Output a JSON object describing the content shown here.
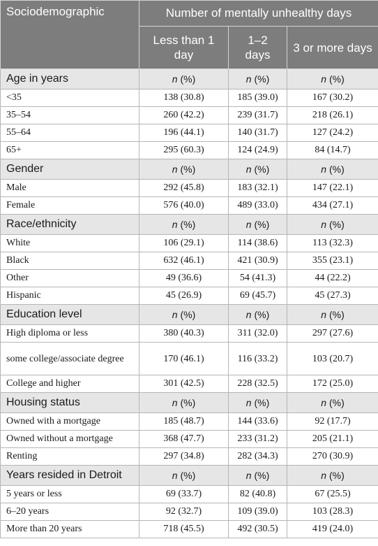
{
  "header": {
    "stub_label": "Sociodemographic",
    "group_label": "Number of mentally unhealthy days",
    "columns": [
      "Less than 1 day",
      "1–2 days",
      "3 or more days"
    ]
  },
  "unit_header": {
    "n": "n",
    "pct": " (%)"
  },
  "sections": [
    {
      "title": "Age in years",
      "rows": [
        {
          "label": "<35",
          "values": [
            "138 (30.8)",
            "185 (39.0)",
            "167 (30.2)"
          ]
        },
        {
          "label": "35–54",
          "values": [
            "260 (42.2)",
            "239 (31.7)",
            "218 (26.1)"
          ]
        },
        {
          "label": "55–64",
          "values": [
            "196 (44.1)",
            "140 (31.7)",
            "127 (24.2)"
          ]
        },
        {
          "label": "65+",
          "values": [
            "295 (60.3)",
            "124 (24.9)",
            "84 (14.7)"
          ]
        }
      ]
    },
    {
      "title": "Gender",
      "rows": [
        {
          "label": "Male",
          "values": [
            "292 (45.8)",
            "183 (32.1)",
            "147 (22.1)"
          ]
        },
        {
          "label": "Female",
          "values": [
            "576 (40.0)",
            "489 (33.0)",
            "434 (27.1)"
          ]
        }
      ]
    },
    {
      "title": "Race/ethnicity",
      "rows": [
        {
          "label": "White",
          "values": [
            "106 (29.1)",
            "114 (38.6)",
            "113 (32.3)"
          ]
        },
        {
          "label": "Black",
          "values": [
            "632 (46.1)",
            "421 (30.9)",
            "355 (23.1)"
          ]
        },
        {
          "label": "Other",
          "values": [
            "49 (36.6)",
            "54 (41.3)",
            "44 (22.2)"
          ]
        },
        {
          "label": "Hispanic",
          "values": [
            "45 (26.9)",
            "69 (45.7)",
            "45 (27.3)"
          ]
        }
      ]
    },
    {
      "title": "Education level",
      "rows": [
        {
          "label": "High diploma or less",
          "values": [
            "380 (40.3)",
            "311 (32.0)",
            "297 (27.6)"
          ]
        },
        {
          "label": "some college/associate degree",
          "values": [
            "170 (46.1)",
            "116 (33.2)",
            "103 (20.7)"
          ]
        },
        {
          "label": "College and higher",
          "values": [
            "301 (42.5)",
            "228 (32.5)",
            "172 (25.0)"
          ]
        }
      ]
    },
    {
      "title": "Housing status",
      "rows": [
        {
          "label": "Owned with a mortgage",
          "values": [
            "185 (48.7)",
            "144 (33.6)",
            "92 (17.7)"
          ]
        },
        {
          "label": "Owned without a mortgage",
          "values": [
            "368 (47.7)",
            "233 (31.2)",
            "205 (21.1)"
          ]
        },
        {
          "label": "Renting",
          "values": [
            "297 (34.8)",
            "282 (34.3)",
            "270 (30.9)"
          ]
        }
      ]
    },
    {
      "title": "Years resided in Detroit",
      "rows": [
        {
          "label": "5 years or less",
          "values": [
            "69 (33.7)",
            "82 (40.8)",
            "67 (25.5)"
          ]
        },
        {
          "label": "6–20 years",
          "values": [
            "92 (32.7)",
            "109 (39.0)",
            "103 (28.3)"
          ]
        },
        {
          "label": "More than 20 years",
          "values": [
            "718 (45.5)",
            "492 (30.5)",
            "419 (24.0)"
          ]
        }
      ]
    }
  ]
}
